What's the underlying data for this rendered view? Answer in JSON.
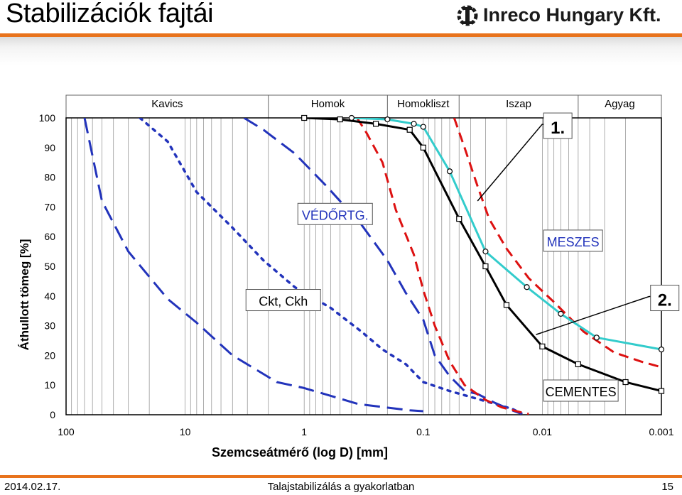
{
  "slide": {
    "title": "Stabilizációk fajtái",
    "logo_text": "Inreco Hungary Kft.",
    "footer_date": "2014.02.17.",
    "footer_title": "Talajstabilizálás a gyakorlatban",
    "page_number": "15"
  },
  "colors": {
    "accent": "#e8731c",
    "black": "#000000",
    "blue": "#2233bb",
    "red": "#dd1111",
    "cyan": "#33cccc"
  },
  "chart_data": {
    "type": "line",
    "xscale": "log",
    "xaxis_reversed": true,
    "xlabel": "Szemcseátmérő (log D) [mm]",
    "ylabel": "Áthullott tömeg [%]",
    "xlim": [
      100,
      0.001
    ],
    "ylim": [
      0,
      100
    ],
    "x_tick_labels": [
      "100",
      "10",
      "1",
      "0.1",
      "0.01",
      "0.001"
    ],
    "x_ticks": [
      100,
      10,
      1,
      0.1,
      0.01,
      0.001
    ],
    "y_ticks": [
      0,
      10,
      20,
      30,
      40,
      50,
      60,
      70,
      80,
      90,
      100
    ],
    "zones": [
      {
        "label": "Kavics",
        "from": 100,
        "to": 2
      },
      {
        "label": "Homok",
        "from": 2,
        "to": 0.2
      },
      {
        "label": "Homokliszt",
        "from": 0.2,
        "to": 0.05
      },
      {
        "label": "Iszap",
        "from": 0.05,
        "to": 0.005
      },
      {
        "label": "Agyag",
        "from": 0.005,
        "to": 0.001
      }
    ],
    "annotations": [
      {
        "text": "VÉDŐRTG.",
        "at": [
          1.1,
          65
        ],
        "line_to": null
      },
      {
        "text": "Ckt, Ckh",
        "at": [
          3,
          36
        ],
        "line_to": null
      },
      {
        "text": "MESZES",
        "at": [
          0.0095,
          56
        ],
        "line_to": null
      },
      {
        "text": "CEMENTES",
        "at": [
          0.0095,
          5.5
        ],
        "line_to": null
      },
      {
        "text": "1.",
        "at": [
          0.0095,
          94
        ],
        "line_to": [
          0.035,
          72
        ],
        "pointer_from": [
          0.013,
          97
        ]
      },
      {
        "text": "2.",
        "at": [
          0.0012,
          36
        ],
        "line_to": [
          0.0113,
          27
        ],
        "pointer_from": [
          0.0025,
          38
        ]
      }
    ],
    "series": [
      {
        "color": "#2233bb",
        "style": "longdash",
        "width": 3,
        "points": [
          [
            70,
            100
          ],
          [
            50,
            72
          ],
          [
            30,
            55
          ],
          [
            14,
            39
          ],
          [
            8,
            31
          ],
          [
            4,
            20
          ],
          [
            1.7,
            11
          ],
          [
            1.0,
            9
          ],
          [
            0.35,
            3.6
          ],
          [
            0.13,
            1.5
          ],
          [
            0.1,
            1.2
          ]
        ]
      },
      {
        "color": "#2233bb",
        "style": "dotted",
        "width": 3.5,
        "points": [
          [
            24,
            100
          ],
          [
            14,
            92
          ],
          [
            8,
            75
          ],
          [
            4,
            63
          ],
          [
            2.2,
            52
          ],
          [
            1.2,
            43
          ],
          [
            0.6,
            36
          ],
          [
            0.33,
            28
          ],
          [
            0.22,
            22
          ],
          [
            0.14,
            17
          ],
          [
            0.1,
            11
          ],
          [
            0.06,
            8
          ],
          [
            0.04,
            6
          ],
          [
            0.018,
            2
          ],
          [
            0.015,
            0.5
          ]
        ]
      },
      {
        "color": "#2233bb",
        "style": "longdash",
        "width": 3,
        "points": [
          [
            3.2,
            100
          ],
          [
            2.2,
            96
          ],
          [
            1.2,
            88
          ],
          [
            0.65,
            77
          ],
          [
            0.33,
            64
          ],
          [
            0.2,
            52
          ],
          [
            0.14,
            41
          ],
          [
            0.1,
            32
          ],
          [
            0.08,
            20
          ],
          [
            0.06,
            13
          ],
          [
            0.045,
            8
          ],
          [
            0.035,
            7
          ],
          [
            0.025,
            4
          ],
          [
            0.018,
            1.5
          ],
          [
            0.015,
            0.3
          ]
        ]
      },
      {
        "color": "#dd1111",
        "style": "dash",
        "width": 3,
        "points": [
          [
            0.36,
            100
          ],
          [
            0.3,
            95
          ],
          [
            0.22,
            85
          ],
          [
            0.17,
            69
          ],
          [
            0.12,
            54
          ],
          [
            0.1,
            42
          ],
          [
            0.08,
            30
          ],
          [
            0.06,
            18
          ],
          [
            0.045,
            10
          ],
          [
            0.03,
            5
          ],
          [
            0.022,
            2.5
          ],
          [
            0.015,
            0.8
          ],
          [
            0.013,
            0.3
          ]
        ]
      },
      {
        "color": "#dd1111",
        "style": "dash",
        "width": 3,
        "points": [
          [
            0.055,
            100
          ],
          [
            0.045,
            90
          ],
          [
            0.035,
            77
          ],
          [
            0.028,
            66
          ],
          [
            0.02,
            56
          ],
          [
            0.013,
            46
          ],
          [
            0.008,
            38
          ],
          [
            0.0045,
            28
          ],
          [
            0.0025,
            21
          ],
          [
            0.0015,
            18
          ],
          [
            0.001,
            16
          ]
        ]
      },
      {
        "color": "#000000",
        "style": "solid",
        "width": 3,
        "markers": "square",
        "points": [
          [
            1.0,
            100
          ],
          [
            0.5,
            99.5
          ],
          [
            0.25,
            98
          ],
          [
            0.13,
            96
          ],
          [
            0.1,
            90
          ],
          [
            0.05,
            66
          ],
          [
            0.03,
            50
          ],
          [
            0.02,
            37
          ],
          [
            0.01,
            23
          ],
          [
            0.005,
            17
          ],
          [
            0.002,
            11
          ],
          [
            0.001,
            8
          ]
        ]
      },
      {
        "color": "#33cccc",
        "style": "solid",
        "width": 3,
        "markers": "circle",
        "points": [
          [
            0.4,
            100
          ],
          [
            0.2,
            99.5
          ],
          [
            0.12,
            98
          ],
          [
            0.1,
            97
          ],
          [
            0.06,
            82
          ],
          [
            0.03,
            55
          ],
          [
            0.0135,
            43
          ],
          [
            0.007,
            34
          ],
          [
            0.0035,
            26
          ],
          [
            0.001,
            22
          ]
        ]
      }
    ]
  }
}
